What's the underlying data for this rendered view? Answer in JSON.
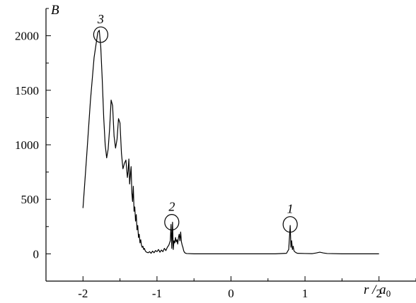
{
  "chart_data": {
    "type": "line",
    "title": "",
    "ylabel": "B",
    "xlabel": {
      "main": "r / a",
      "subscript": "0"
    },
    "xlim": [
      -2.5,
      2.5
    ],
    "ylim": [
      -250,
      2250
    ],
    "x_ticks": [
      -2,
      -1,
      0,
      1,
      2
    ],
    "x_tick_labels": [
      "-2",
      "-1",
      "0",
      "1",
      "2"
    ],
    "y_ticks": [
      0,
      500,
      1000,
      1500,
      2000
    ],
    "y_tick_labels": [
      "0",
      "500",
      "1000",
      "1500",
      "2000"
    ],
    "grid": false,
    "line_color": "#000000",
    "series": [
      {
        "x": [
          -2.0,
          -1.95,
          -1.9,
          -1.85,
          -1.8,
          -1.78,
          -1.76,
          -1.74,
          -1.72,
          -1.7,
          -1.68,
          -1.66,
          -1.64,
          -1.62,
          -1.6,
          -1.58,
          -1.56,
          -1.54,
          -1.52,
          -1.5,
          -1.48,
          -1.46,
          -1.44,
          -1.42,
          -1.4,
          -1.39,
          -1.38,
          -1.37,
          -1.36,
          -1.35,
          -1.34,
          -1.33,
          -1.32,
          -1.31,
          -1.3,
          -1.29,
          -1.28,
          -1.27,
          -1.26,
          -1.25,
          -1.24,
          -1.23,
          -1.22,
          -1.21,
          -1.2,
          -1.19,
          -1.18,
          -1.17,
          -1.16,
          -1.15,
          -1.14,
          -1.12,
          -1.1,
          -1.08,
          -1.06,
          -1.04,
          -1.02,
          -1.0,
          -0.98,
          -0.96,
          -0.94,
          -0.92,
          -0.9,
          -0.88,
          -0.86,
          -0.84,
          -0.82,
          -0.81,
          -0.8,
          -0.79,
          -0.78,
          -0.77,
          -0.76,
          -0.75,
          -0.74,
          -0.73,
          -0.72,
          -0.71,
          -0.7,
          -0.69,
          -0.68,
          -0.67,
          -0.66,
          -0.65,
          -0.64,
          -0.63,
          -0.62,
          -0.6,
          -0.5,
          -0.3,
          0.0,
          0.3,
          0.6,
          0.75,
          0.78,
          0.79,
          0.8,
          0.81,
          0.82,
          0.83,
          0.84,
          0.85,
          0.86,
          0.87,
          0.88,
          0.9,
          1.0,
          1.1,
          1.15,
          1.2,
          1.25,
          1.3,
          1.5,
          1.8,
          2.0
        ],
        "y": [
          420,
          900,
          1400,
          1800,
          2030,
          2050,
          1900,
          1600,
          1250,
          1000,
          880,
          960,
          1150,
          1410,
          1360,
          1080,
          970,
          1050,
          1240,
          1200,
          920,
          780,
          830,
          860,
          700,
          760,
          870,
          640,
          720,
          800,
          560,
          480,
          620,
          390,
          430,
          300,
          360,
          220,
          260,
          150,
          180,
          100,
          130,
          80,
          60,
          70,
          40,
          50,
          30,
          20,
          15,
          10,
          20,
          5,
          25,
          10,
          30,
          20,
          40,
          15,
          35,
          20,
          50,
          30,
          60,
          80,
          120,
          270,
          50,
          290,
          40,
          120,
          100,
          150,
          110,
          130,
          90,
          150,
          180,
          120,
          200,
          110,
          80,
          60,
          30,
          15,
          8,
          3,
          0,
          0,
          0,
          0,
          0,
          5,
          40,
          150,
          260,
          60,
          120,
          40,
          70,
          30,
          20,
          15,
          10,
          5,
          3,
          2,
          8,
          15,
          8,
          3,
          0,
          0,
          0
        ]
      }
    ],
    "annotations": [
      {
        "label": "1",
        "x": 0.8,
        "y": 270
      },
      {
        "label": "2",
        "x": -0.8,
        "y": 290
      },
      {
        "label": "3",
        "x": -1.76,
        "y": 2010
      }
    ]
  }
}
